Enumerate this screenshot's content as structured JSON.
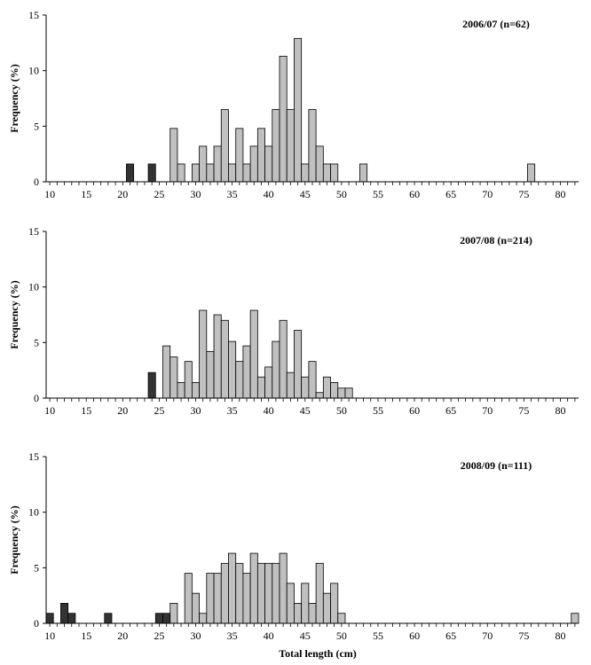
{
  "colors": {
    "juvenile_bar": "#333333",
    "adult_bar": "#c0c0c0",
    "bar_stroke": "#000000",
    "axis": "#000000"
  },
  "chart_data": [
    {
      "type": "bar",
      "title": "2006/07 (n=62)",
      "xlabel": "",
      "ylabel": "Frequency (%)",
      "xlim": [
        9.5,
        82.5
      ],
      "ylim": [
        0,
        15
      ],
      "yticks": [
        0,
        5,
        10,
        15
      ],
      "xticks": [
        10,
        15,
        20,
        25,
        30,
        35,
        40,
        45,
        50,
        55,
        60,
        65,
        70,
        75,
        80
      ],
      "grid": false,
      "legend": "none",
      "series": [
        {
          "color": "#333333",
          "x": [
            21,
            24
          ],
          "values": [
            1.6,
            1.6
          ]
        },
        {
          "color": "#c0c0c0",
          "x": [
            27,
            28,
            30,
            31,
            32,
            33,
            34,
            35,
            36,
            37,
            38,
            39,
            40,
            41,
            42,
            43,
            44,
            45,
            46,
            47,
            48,
            49,
            53,
            76
          ],
          "values": [
            4.8,
            1.6,
            1.6,
            3.2,
            1.6,
            3.2,
            6.5,
            1.6,
            4.8,
            1.6,
            3.2,
            4.8,
            3.2,
            6.5,
            11.3,
            6.5,
            12.9,
            1.6,
            6.5,
            3.2,
            1.6,
            1.6,
            1.6,
            1.6
          ]
        }
      ]
    },
    {
      "type": "bar",
      "title": "2007/08 (n=214)",
      "xlabel": "",
      "ylabel": "Frequency (%)",
      "xlim": [
        9.5,
        82.5
      ],
      "ylim": [
        0,
        15
      ],
      "yticks": [
        0,
        5,
        10,
        15
      ],
      "xticks": [
        10,
        15,
        20,
        25,
        30,
        35,
        40,
        45,
        50,
        55,
        60,
        65,
        70,
        75,
        80
      ],
      "grid": false,
      "legend": "none",
      "series": [
        {
          "color": "#333333",
          "x": [
            24
          ],
          "values": [
            2.3
          ]
        },
        {
          "color": "#c0c0c0",
          "x": [
            26,
            27,
            28,
            29,
            30,
            31,
            32,
            33,
            34,
            35,
            36,
            37,
            38,
            39,
            40,
            41,
            42,
            43,
            44,
            45,
            46,
            47,
            48,
            49,
            50
          ],
          "values": [
            4.7,
            3.7,
            1.4,
            3.3,
            1.4,
            7.9,
            4.2,
            7.5,
            7.0,
            5.1,
            3.3,
            4.7,
            7.9,
            1.9,
            2.8,
            5.1,
            7.0,
            2.3,
            6.1,
            1.9,
            3.3,
            0.5,
            1.9,
            1.4,
            0.9
          ]
        },
        {
          "color": "#c0c0c0",
          "x": [
            51
          ],
          "values": [
            0.9
          ]
        }
      ]
    },
    {
      "type": "bar",
      "title": "2008/09 (n=111)",
      "xlabel": "Total length (cm)",
      "ylabel": "Frequency (%)",
      "xlim": [
        9.5,
        82.5
      ],
      "ylim": [
        0,
        15
      ],
      "yticks": [
        0,
        5,
        10,
        15
      ],
      "xticks": [
        10,
        15,
        20,
        25,
        30,
        35,
        40,
        45,
        50,
        55,
        60,
        65,
        70,
        75,
        80
      ],
      "grid": false,
      "legend": "none",
      "series": [
        {
          "color": "#333333",
          "x": [
            10,
            12,
            13,
            18,
            25,
            26
          ],
          "values": [
            0.9,
            1.8,
            0.9,
            0.9,
            0.9,
            0.9
          ]
        },
        {
          "color": "#c0c0c0",
          "x": [
            27,
            29,
            30,
            31,
            32,
            33,
            34,
            35,
            36,
            37,
            38,
            39,
            40,
            41,
            42,
            43,
            44,
            45,
            46,
            47,
            48,
            49,
            50,
            82
          ],
          "values": [
            1.8,
            4.5,
            2.7,
            0.9,
            4.5,
            4.5,
            5.4,
            6.3,
            5.4,
            4.5,
            6.3,
            5.4,
            5.4,
            5.4,
            6.3,
            3.6,
            1.8,
            3.6,
            1.8,
            5.4,
            2.7,
            3.6,
            0.9,
            0.9
          ]
        }
      ]
    }
  ]
}
